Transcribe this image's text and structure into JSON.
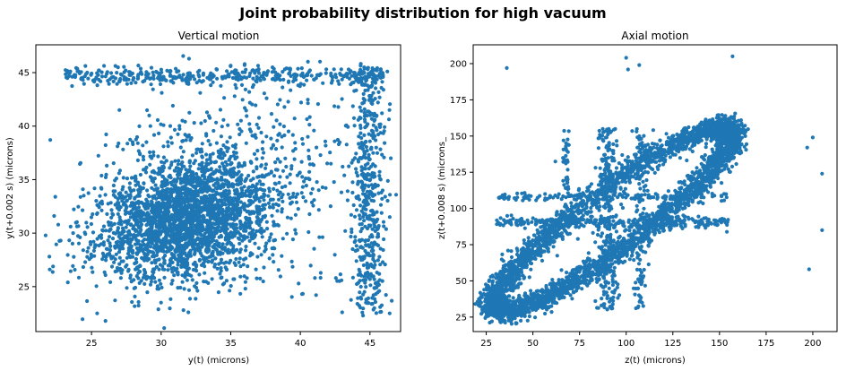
{
  "figure": {
    "suptitle": "Joint probability distribution for high vacuum"
  },
  "chart_data": [
    {
      "type": "scatter",
      "title": "Vertical motion",
      "xlabel": "y(t) (microns)",
      "ylabel": "y(t+0.002 s) (microns)",
      "xlim": [
        21.0,
        47.2
      ],
      "ylim": [
        20.8,
        47.6
      ],
      "xticks": [
        25,
        30,
        35,
        40,
        45
      ],
      "yticks": [
        25,
        30,
        35,
        40,
        45
      ],
      "marker_color": "#1f77b4",
      "grid": false,
      "clusters": [
        {
          "shape": "gaussian",
          "center": [
            31.8,
            31.5
          ],
          "sigma": [
            2.9,
            2.6
          ],
          "corr": 0.15,
          "n": 2100
        },
        {
          "shape": "gaussian",
          "center": [
            34.0,
            35.0
          ],
          "sigma": [
            4.2,
            3.8
          ],
          "corr": 0.1,
          "n": 500
        },
        {
          "shape": "gaussian",
          "center": [
            30.5,
            28.0
          ],
          "sigma": [
            4.0,
            2.2
          ],
          "corr": 0.0,
          "n": 300
        },
        {
          "shape": "band",
          "x_range": [
            23.0,
            46.0
          ],
          "y_center": 44.7,
          "y_sigma": 0.45,
          "n": 380
        },
        {
          "shape": "band_vertical",
          "x_center": 44.9,
          "x_sigma": 0.55,
          "y_range": [
            22.5,
            45.5
          ],
          "n": 450
        },
        {
          "shape": "scatter_uniform",
          "x_range": [
            36.0,
            46.5
          ],
          "y_range": [
            24.0,
            45.0
          ],
          "n": 120
        }
      ],
      "sample_points": [
        [
          22.0,
          26.6
        ],
        [
          22.4,
          33.4
        ],
        [
          23.3,
          25.4
        ],
        [
          26.0,
          21.8
        ],
        [
          25.4,
          22.5
        ],
        [
          31.6,
          22.8
        ],
        [
          36.0,
          45.8
        ],
        [
          43.0,
          22.6
        ],
        [
          44.5,
          22.3
        ],
        [
          46.5,
          37.0
        ],
        [
          46.4,
          41.5
        ],
        [
          27.0,
          41.5
        ],
        [
          26.9,
          45.5
        ],
        [
          32.0,
          46.3
        ],
        [
          38.0,
          45.5
        ]
      ]
    },
    {
      "type": "scatter",
      "title": "Axial motion",
      "xlabel": "z(t) (microns)",
      "ylabel": "z(t+0.008 s) (microns_",
      "xlim": [
        18,
        213
      ],
      "ylim": [
        15,
        213
      ],
      "xticks": [
        25,
        50,
        75,
        100,
        125,
        150,
        175,
        200
      ],
      "yticks": [
        25,
        50,
        75,
        100,
        125,
        150,
        175,
        200
      ],
      "marker_color": "#1f77b4",
      "grid": false,
      "clusters": [
        {
          "shape": "ellipse_ring",
          "axis_start": [
            30,
            30
          ],
          "axis_end": [
            156,
            155
          ],
          "half_width": 18,
          "thickness": 3.5,
          "n": 3800
        },
        {
          "shape": "cross_horizontal",
          "x_range": [
            30,
            155
          ],
          "y_center": 90,
          "y_sigma": 2.0,
          "n": 260
        },
        {
          "shape": "cross_horizontal",
          "x_range": [
            30,
            155
          ],
          "y_center": 108,
          "y_sigma": 1.5,
          "n": 140
        },
        {
          "shape": "cross_vertical",
          "x_center": 90,
          "x_sigma": 2.5,
          "y_range": [
            30,
            155
          ],
          "n": 250
        },
        {
          "shape": "cross_vertical",
          "x_center": 108,
          "x_sigma": 2.0,
          "y_range": [
            30,
            155
          ],
          "n": 120
        },
        {
          "shape": "cross_vertical",
          "x_center": 68,
          "x_sigma": 1.2,
          "y_range": [
            100,
            155
          ],
          "n": 40
        }
      ],
      "sample_points": [
        [
          36,
          197
        ],
        [
          100,
          204
        ],
        [
          101,
          196
        ],
        [
          107,
          199
        ],
        [
          157,
          205
        ],
        [
          200,
          149
        ],
        [
          205,
          124
        ],
        [
          205,
          85
        ],
        [
          198,
          58
        ],
        [
          197,
          142
        ]
      ]
    }
  ]
}
